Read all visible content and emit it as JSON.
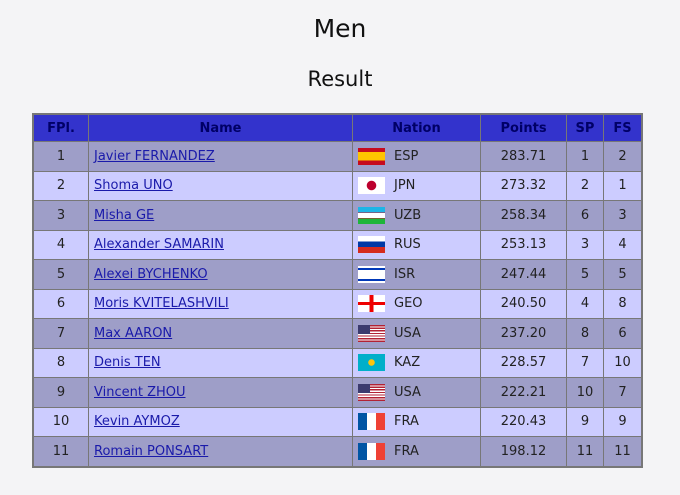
{
  "title": "Men",
  "subtitle": "Result",
  "headers": [
    "FPl.",
    "Name",
    "Nation",
    "Points",
    "SP",
    "FS"
  ],
  "rows": [
    {
      "fpl": "1",
      "name": "Javier FERNANDEZ",
      "nation": "ESP",
      "points": "283.71",
      "sp": "1",
      "fs": "2"
    },
    {
      "fpl": "2",
      "name": "Shoma UNO",
      "nation": "JPN",
      "points": "273.32",
      "sp": "2",
      "fs": "1"
    },
    {
      "fpl": "3",
      "name": "Misha GE",
      "nation": "UZB",
      "points": "258.34",
      "sp": "6",
      "fs": "3"
    },
    {
      "fpl": "4",
      "name": "Alexander SAMARIN",
      "nation": "RUS",
      "points": "253.13",
      "sp": "3",
      "fs": "4"
    },
    {
      "fpl": "5",
      "name": "Alexei BYCHENKO",
      "nation": "ISR",
      "points": "247.44",
      "sp": "5",
      "fs": "5"
    },
    {
      "fpl": "6",
      "name": "Moris KVITELASHVILI",
      "nation": "GEO",
      "points": "240.50",
      "sp": "4",
      "fs": "8"
    },
    {
      "fpl": "7",
      "name": "Max AARON",
      "nation": "USA",
      "points": "237.20",
      "sp": "8",
      "fs": "6"
    },
    {
      "fpl": "8",
      "name": "Denis TEN",
      "nation": "KAZ",
      "points": "228.57",
      "sp": "7",
      "fs": "10"
    },
    {
      "fpl": "9",
      "name": "Vincent ZHOU",
      "nation": "USA",
      "points": "222.21",
      "sp": "10",
      "fs": "7"
    },
    {
      "fpl": "10",
      "name": "Kevin AYMOZ",
      "nation": "FRA",
      "points": "220.43",
      "sp": "9",
      "fs": "9"
    },
    {
      "fpl": "11",
      "name": "Romain PONSART",
      "nation": "FRA",
      "points": "198.12",
      "sp": "11",
      "fs": "11"
    }
  ]
}
